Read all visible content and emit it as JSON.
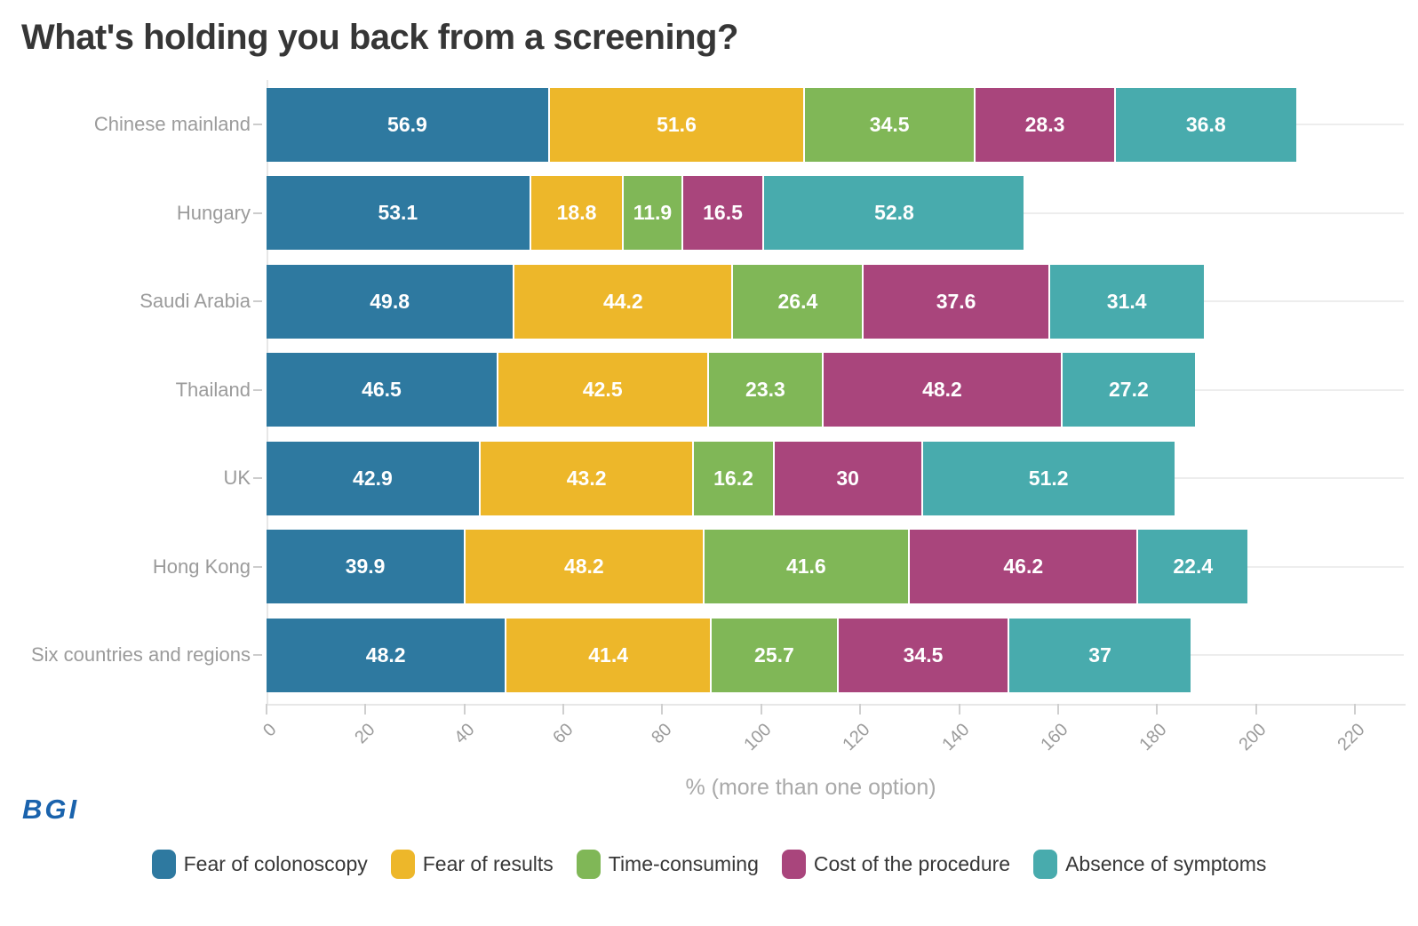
{
  "title": "What's holding you back from a screening?",
  "logo_text": "BGI",
  "chart_data": {
    "type": "bar",
    "orientation": "horizontal",
    "stacked": true,
    "grid": "horizontal-per-category",
    "legend_position": "bottom",
    "title": "What's holding you back from a screening?",
    "xlabel": "% (more than one option)",
    "ylabel": "",
    "xlim": [
      0,
      220
    ],
    "xticks": [
      0,
      20,
      40,
      60,
      80,
      100,
      120,
      140,
      160,
      180,
      200,
      220
    ],
    "categories": [
      "Chinese mainland",
      "Hungary",
      "Saudi Arabia",
      "Thailand",
      "UK",
      "Hong Kong",
      "Six countries and regions"
    ],
    "series": [
      {
        "name": "Fear of colonoscopy",
        "color": "#2e79a0",
        "values": [
          56.9,
          53.1,
          49.8,
          46.5,
          42.9,
          39.9,
          48.2
        ]
      },
      {
        "name": "Fear of results",
        "color": "#edb72a",
        "values": [
          51.6,
          18.8,
          44.2,
          42.5,
          43.2,
          48.2,
          41.4
        ]
      },
      {
        "name": "Time-consuming",
        "color": "#80b757",
        "values": [
          34.5,
          11.9,
          26.4,
          23.3,
          16.2,
          41.6,
          25.7
        ]
      },
      {
        "name": "Cost of the procedure",
        "color": "#a9457c",
        "values": [
          28.3,
          16.5,
          37.6,
          48.2,
          30,
          46.2,
          34.5
        ]
      },
      {
        "name": "Absence of symptoms",
        "color": "#48abad",
        "values": [
          36.8,
          52.8,
          31.4,
          27.2,
          51.2,
          22.4,
          37
        ]
      }
    ],
    "colors": {
      "title_text": "#363636",
      "axis_text": "#9b9b9b",
      "grid_line": "#ededed",
      "logo_blue": "#1a63ad",
      "value_label_text": "#ffffff"
    }
  }
}
